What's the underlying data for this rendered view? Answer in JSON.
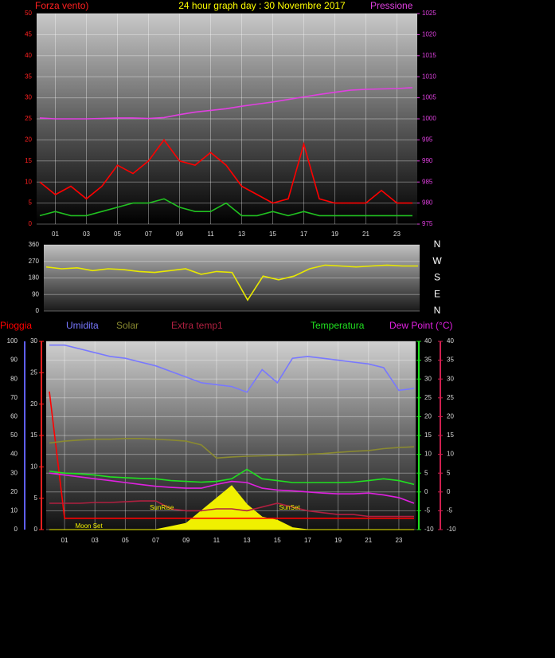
{
  "chart_data": [
    {
      "type": "line",
      "title": "24 hour graph day : 30 Novembre 2017",
      "y_label": "Forza vento)",
      "y2_label": "Pressione",
      "grid": true,
      "xlim": [
        0,
        24
      ],
      "x": [
        0,
        1,
        2,
        3,
        4,
        5,
        6,
        7,
        8,
        9,
        10,
        11,
        12,
        13,
        14,
        15,
        16,
        17,
        18,
        19,
        20,
        21,
        22,
        23,
        24
      ],
      "xticks": [
        {
          "value": 1,
          "label": "01"
        },
        {
          "value": 3,
          "label": "03"
        },
        {
          "value": 5,
          "label": "05"
        },
        {
          "value": 7,
          "label": "07"
        },
        {
          "value": 9,
          "label": "09"
        },
        {
          "value": 11,
          "label": "11"
        },
        {
          "value": 13,
          "label": "13"
        },
        {
          "value": 15,
          "label": "15"
        },
        {
          "value": 17,
          "label": "17"
        },
        {
          "value": 19,
          "label": "19"
        },
        {
          "value": 21,
          "label": "21"
        },
        {
          "value": 23,
          "label": "23"
        }
      ],
      "ylim": [
        0,
        50
      ],
      "yticks": [
        0,
        5,
        10,
        15,
        20,
        25,
        30,
        35,
        40,
        45,
        50
      ],
      "y2lim": [
        975,
        1025
      ],
      "y2ticks": [
        975,
        980,
        985,
        990,
        995,
        1000,
        1005,
        1010,
        1015,
        1020,
        1025
      ],
      "series": [
        {
          "color": "#ff0000",
          "axis": "y",
          "values": [
            10,
            7,
            9,
            6,
            9,
            14,
            12,
            15,
            20,
            15,
            14,
            17,
            14,
            9,
            7,
            5,
            6,
            19,
            6,
            5,
            5,
            5,
            8,
            5,
            5
          ]
        },
        {
          "color": "#20c020",
          "axis": "y",
          "values": [
            2,
            3,
            2,
            2,
            3,
            4,
            5,
            5,
            6,
            4,
            3,
            3,
            5,
            2,
            2,
            3,
            2,
            3,
            2,
            2,
            2,
            2,
            2,
            2,
            2
          ]
        },
        {
          "color": "#e040e0",
          "axis": "y2",
          "values": [
            1000.2,
            1000,
            1000,
            1000,
            1000.1,
            1000.2,
            1000.2,
            1000.1,
            1000.3,
            1001,
            1001.6,
            1002,
            1002.4,
            1003,
            1003.5,
            1004,
            1004.6,
            1005.2,
            1005.8,
            1006.3,
            1006.8,
            1007,
            1007.1,
            1007.2,
            1007.4
          ]
        }
      ]
    },
    {
      "type": "line",
      "grid": true,
      "xlim": [
        0,
        24
      ],
      "x": [
        0,
        1,
        2,
        3,
        4,
        5,
        6,
        7,
        8,
        9,
        10,
        11,
        12,
        13,
        14,
        15,
        16,
        17,
        18,
        19,
        20,
        21,
        22,
        23,
        24
      ],
      "ylim": [
        0,
        360
      ],
      "yticks": [
        0,
        90,
        180,
        270,
        360
      ],
      "y2lim": [
        0,
        360
      ],
      "y2ticks": [
        {
          "value": 360,
          "label": "N"
        },
        {
          "value": 270,
          "label": "W"
        },
        {
          "value": 180,
          "label": "S"
        },
        {
          "value": 90,
          "label": "E"
        },
        {
          "value": 0,
          "label": "N"
        }
      ],
      "series": [
        {
          "color": "#e8e800",
          "axis": "y",
          "values": [
            240,
            230,
            235,
            220,
            230,
            225,
            215,
            210,
            220,
            230,
            200,
            215,
            210,
            60,
            190,
            170,
            190,
            230,
            250,
            245,
            240,
            245,
            250,
            245,
            245
          ]
        }
      ]
    },
    {
      "type": "line",
      "grid": true,
      "xlim": [
        0,
        24
      ],
      "x": [
        0,
        1,
        2,
        3,
        4,
        5,
        6,
        7,
        8,
        9,
        10,
        11,
        12,
        13,
        14,
        15,
        16,
        17,
        18,
        19,
        20,
        21,
        22,
        23,
        24
      ],
      "xticks": [
        {
          "value": 1,
          "label": "01"
        },
        {
          "value": 3,
          "label": "03"
        },
        {
          "value": 5,
          "label": "05"
        },
        {
          "value": 7,
          "label": "07"
        },
        {
          "value": 9,
          "label": "09"
        },
        {
          "value": 11,
          "label": "11"
        },
        {
          "value": 13,
          "label": "13"
        },
        {
          "value": 15,
          "label": "15"
        },
        {
          "value": 17,
          "label": "17"
        },
        {
          "value": 19,
          "label": "19"
        },
        {
          "value": 21,
          "label": "21"
        },
        {
          "value": 23,
          "label": "23"
        }
      ],
      "ylim": [
        0,
        100
      ],
      "yticks": [
        0,
        10,
        20,
        30,
        40,
        50,
        60,
        70,
        80,
        90,
        100
      ],
      "y3lim": [
        0,
        30
      ],
      "y3ticks": [
        0,
        5,
        10,
        15,
        20,
        25,
        30
      ],
      "y2lim": [
        -10,
        40
      ],
      "y2ticks": [
        -10,
        -5,
        0,
        5,
        10,
        15,
        20,
        25,
        30,
        35,
        40
      ],
      "y4lim": [
        -10,
        40
      ],
      "y4ticks": [
        -10,
        -5,
        0,
        5,
        10,
        15,
        20,
        25,
        30,
        35,
        40
      ],
      "annotations": [
        {
          "text": "Moon Set",
          "x": 2.6
        },
        {
          "text": "SunRise",
          "x": 7.4
        },
        {
          "text": "SunSet",
          "x": 15.8
        }
      ],
      "series": [
        {
          "color": "#f0f000",
          "axis": "y3",
          "fill": true,
          "values": [
            0,
            0,
            0,
            0,
            0,
            0,
            0,
            0,
            0.5,
            1,
            3,
            5,
            7,
            4,
            2,
            1.5,
            0.3,
            0,
            0,
            0,
            0,
            0,
            0,
            0,
            0
          ]
        },
        {
          "name": "Pioggia",
          "color": "#ff0000",
          "axis": "y3",
          "values": [
            22,
            1.8,
            1.8,
            1.8,
            1.8,
            1.8,
            1.8,
            1.8,
            1.8,
            1.8,
            1.8,
            1.8,
            1.8,
            1.8,
            1.8,
            1.8,
            1.8,
            1.8,
            1.8,
            1.8,
            1.8,
            1.8,
            1.8,
            1.8,
            1.8
          ]
        },
        {
          "name": "Umidita",
          "color": "#7878ff",
          "axis": "y",
          "values": [
            98,
            98,
            96,
            94,
            92,
            91,
            89,
            87,
            84,
            81,
            78,
            77,
            76,
            73,
            85,
            78,
            91,
            92,
            91,
            90,
            89,
            88,
            86,
            74,
            75
          ]
        },
        {
          "name": "Solar",
          "color": "#8a8a30",
          "axis": "y2",
          "values": [
            13,
            13.5,
            13.8,
            14,
            14,
            14.2,
            14.2,
            14,
            13.8,
            13.5,
            12.5,
            9,
            9.3,
            9.5,
            9.6,
            9.7,
            9.8,
            10,
            10.2,
            10.5,
            10.8,
            11,
            11.5,
            11.8,
            12
          ]
        },
        {
          "name": "Extra temp1",
          "color": "#b02040",
          "axis": "y2",
          "values": [
            -3,
            -3,
            -3,
            -2.8,
            -2.8,
            -2.6,
            -2.4,
            -2.4,
            -4.5,
            -5,
            -5,
            -4.5,
            -4.5,
            -5,
            -4,
            -3,
            -4,
            -5,
            -5.5,
            -6,
            -6,
            -6.5,
            -6.5,
            -6.5,
            -6.5
          ]
        },
        {
          "name": "Temperatura",
          "color": "#20e020",
          "axis": "y2",
          "values": [
            5.5,
            5,
            4.8,
            4.5,
            4,
            3.8,
            3.6,
            3.5,
            3,
            2.8,
            2.6,
            2.8,
            3.5,
            6,
            3.5,
            3,
            2.5,
            2.5,
            2.5,
            2.5,
            2.6,
            3,
            3.5,
            3,
            2
          ]
        },
        {
          "name": "Dew Point (°C)",
          "color": "#e020e0",
          "axis": "y4",
          "values": [
            5,
            4.5,
            4,
            3.5,
            3,
            2.5,
            2,
            1.5,
            1.2,
            1,
            1,
            2,
            2.8,
            2.5,
            1,
            0.5,
            0.3,
            0,
            -0.3,
            -0.5,
            -0.5,
            -0.3,
            -0.8,
            -1.5,
            -3
          ]
        }
      ]
    }
  ]
}
